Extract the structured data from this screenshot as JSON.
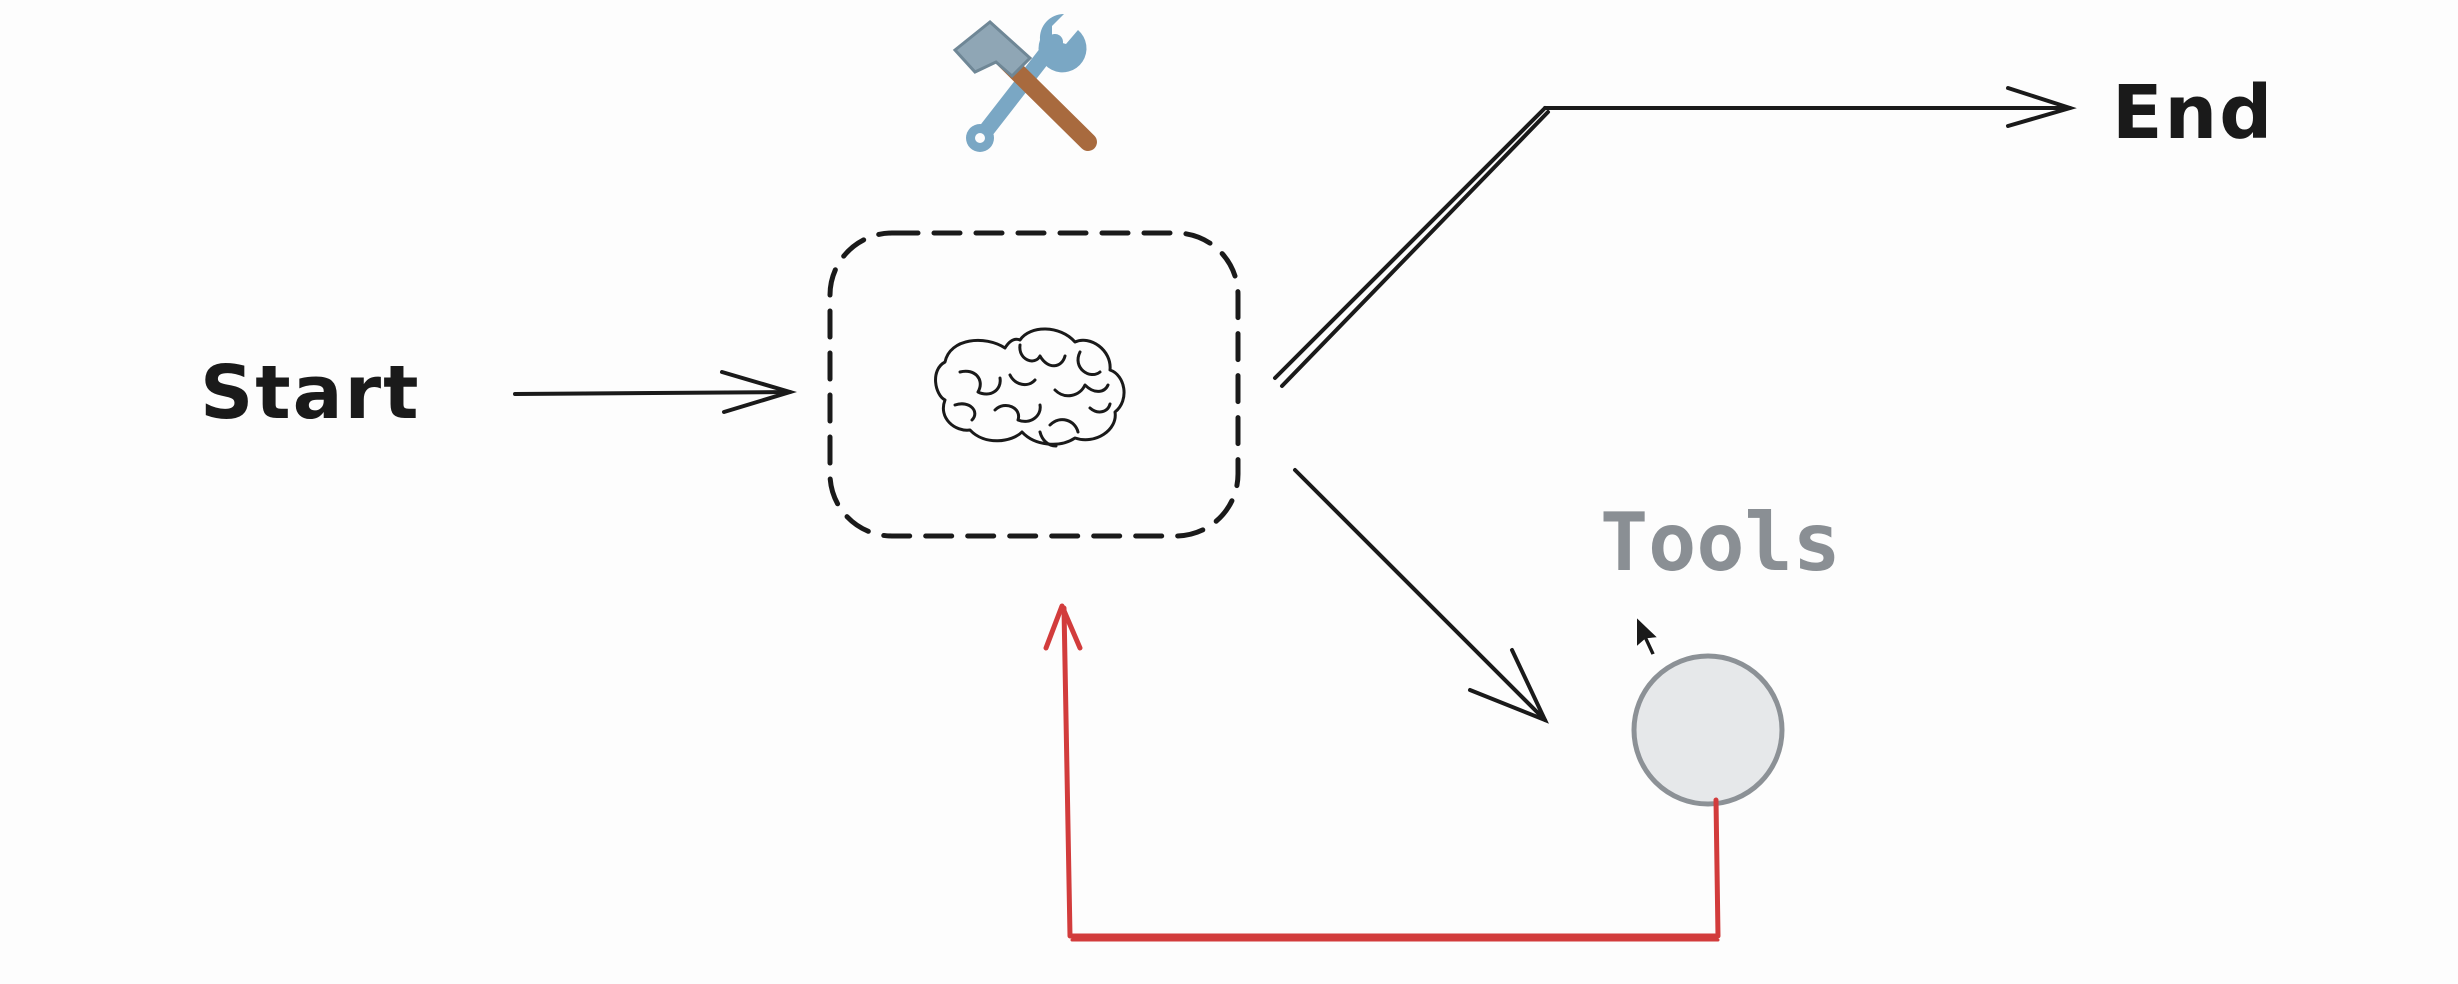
{
  "diagram": {
    "nodes": {
      "start": {
        "label": "Start"
      },
      "end": {
        "label": "End"
      },
      "tools": {
        "label": "Tools"
      },
      "agent": {
        "icon": "brain-icon",
        "tool_badge": "hammer-and-wrench-icon"
      }
    },
    "edges": [
      {
        "from": "start",
        "to": "agent"
      },
      {
        "from": "agent",
        "to": "end"
      },
      {
        "from": "agent",
        "to": "tools"
      },
      {
        "from": "tools",
        "to": "agent",
        "color": "#d23c3c"
      }
    ],
    "colors": {
      "stroke": "#1a1a1a",
      "loop": "#d23c3c",
      "tools_label": "#8a8f94",
      "tools_circle_fill": "#e6e8ea",
      "tools_circle_stroke": "#8c9196"
    }
  }
}
